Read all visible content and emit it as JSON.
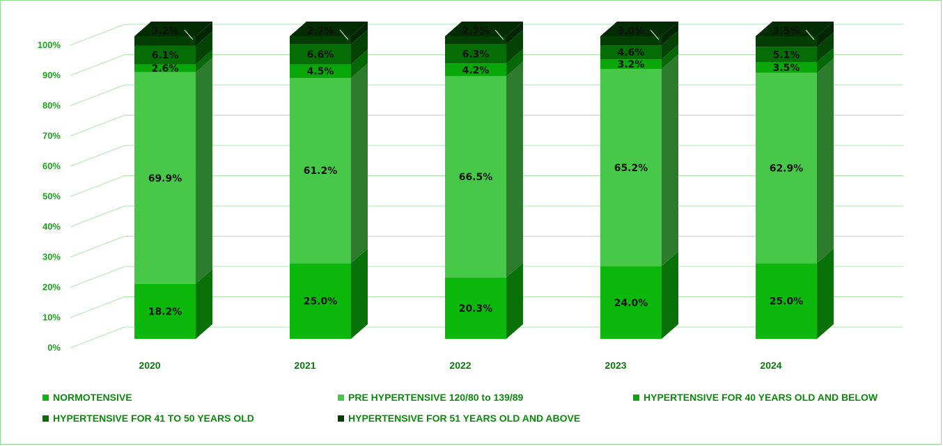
{
  "chart_data": {
    "type": "bar",
    "stacked": true,
    "percent": true,
    "three_d": true,
    "categories": [
      "2020",
      "2021",
      "2022",
      "2023",
      "2024"
    ],
    "series": [
      {
        "name": "NORMOTENSIVE",
        "color": "#0db80d",
        "values": [
          18.2,
          25.0,
          20.3,
          24.0,
          25.0
        ],
        "labels": [
          "18.2%",
          "25.0%",
          "20.3%",
          "24.0%",
          "25.0%"
        ]
      },
      {
        "name": "PRE HYPERTENSIVE 120/80 to 139/89",
        "color": "#48c848",
        "values": [
          69.9,
          61.2,
          66.5,
          65.2,
          62.9
        ],
        "labels": [
          "69.9%",
          "61.2%",
          "66.5%",
          "65.2%",
          "62.9%"
        ]
      },
      {
        "name": "HYPERTENSIVE FOR 40 YEARS OLD AND BELOW",
        "color": "#0aa70a",
        "values": [
          2.6,
          4.5,
          4.2,
          3.2,
          3.5
        ],
        "labels": [
          "2.6%",
          "4.5%",
          "4.2%",
          "3.2%",
          "3.5%"
        ]
      },
      {
        "name": "HYPERTENSIVE FOR 41 TO 50 YEARS OLD",
        "color": "#066c06",
        "values": [
          6.1,
          6.6,
          6.3,
          4.6,
          5.1
        ],
        "labels": [
          "6.1%",
          "6.6%",
          "6.3%",
          "4.6%",
          "5.1%"
        ]
      },
      {
        "name": "HYPERTENSIVE FOR 51 YEARS OLD AND ABOVE",
        "color": "#033d03",
        "values": [
          3.2,
          2.7,
          2.7,
          3.0,
          3.5
        ],
        "labels": [
          "3.2%",
          "2.7%",
          "2.7%",
          "3.0%",
          "3.5%"
        ]
      }
    ],
    "y_ticks": [
      "0%",
      "10%",
      "20%",
      "30%",
      "40%",
      "50%",
      "60%",
      "70%",
      "80%",
      "90%",
      "100%"
    ],
    "ylim": [
      0,
      100
    ],
    "grid": true,
    "legend_position": "bottom",
    "title": "",
    "xlabel": "",
    "ylabel": ""
  }
}
